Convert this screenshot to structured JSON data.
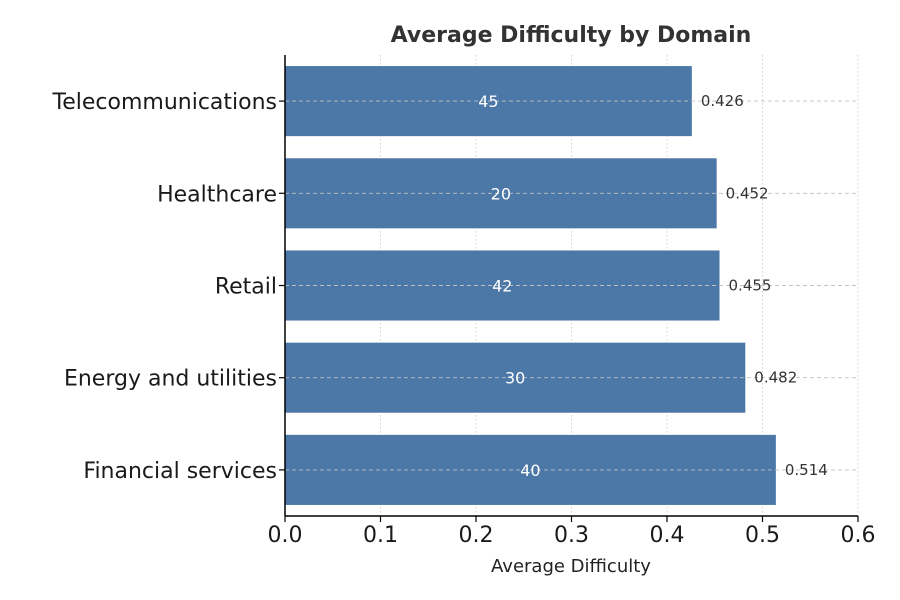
{
  "chart_data": {
    "type": "bar",
    "orientation": "horizontal",
    "title": "Average Difficulty by Domain",
    "xlabel": "Average Difficulty",
    "ylabel": "",
    "xlim": [
      0,
      0.6
    ],
    "xticks": [
      "0.0",
      "0.1",
      "0.2",
      "0.3",
      "0.4",
      "0.5",
      "0.6"
    ],
    "categories": [
      "Telecommunications",
      "Healthcare",
      "Retail",
      "Energy and utilities",
      "Financial services"
    ],
    "values": [
      0.426,
      0.452,
      0.455,
      0.482,
      0.514
    ],
    "value_labels": [
      "0.426",
      "0.452",
      "0.455",
      "0.482",
      "0.514"
    ],
    "inbar_labels": [
      "45",
      "20",
      "42",
      "30",
      "40"
    ],
    "grid": true,
    "colors": {
      "bar": "#4c78a8",
      "axis": "#000000",
      "grid_vertical": "#c8c8c8",
      "grid_horizontal": "#c0c0c0"
    }
  }
}
